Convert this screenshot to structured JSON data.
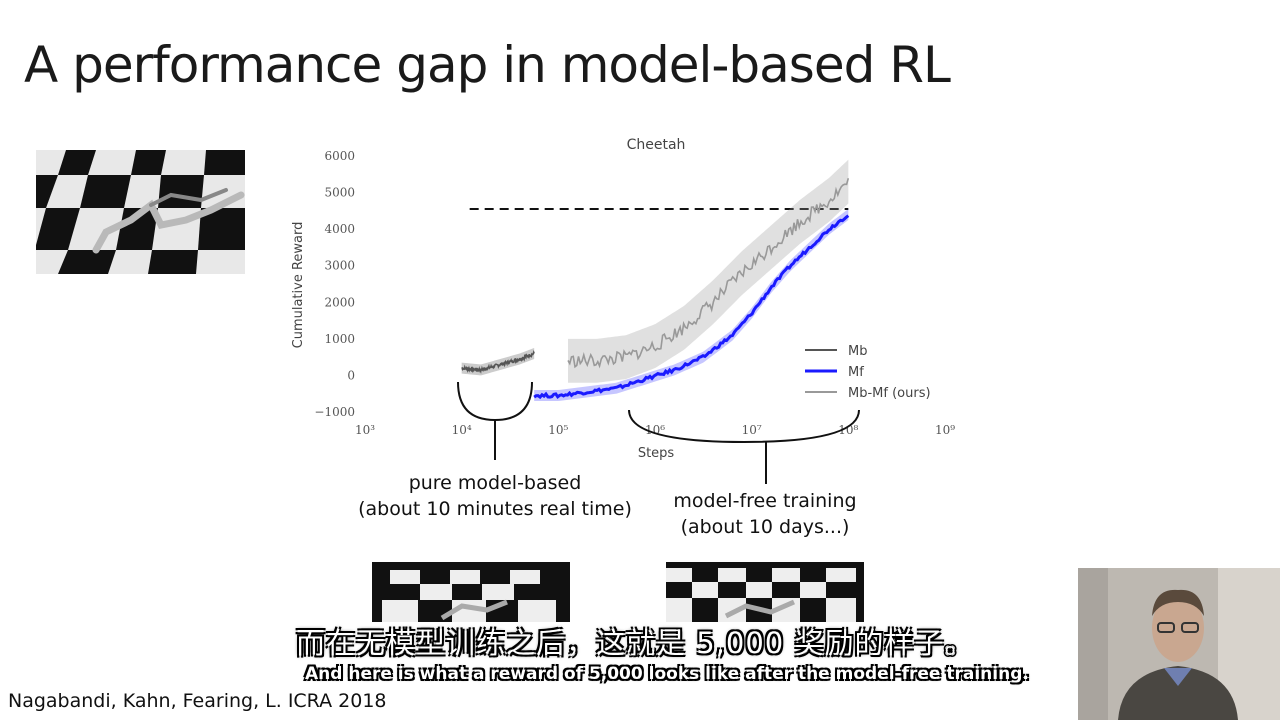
{
  "slide": {
    "title": "A performance gap in model-based RL",
    "citation": "Nagabandi, Kahn, Fearing, L. ICRA 2018"
  },
  "annotations": {
    "pure_model_based": "pure model-based",
    "pure_model_based_detail": "(about 10 minutes real time)",
    "model_free": "model-free training",
    "model_free_detail": "(about 10 days...)"
  },
  "subtitles": {
    "chinese": "而在无模型训练之后，这就是 5,000 奖励的样子。",
    "english": "And here is what a reward of 5,000 looks like after the model-free training."
  },
  "images": {
    "top_left": "cheetah-checkerboard-render",
    "bottom_left": "cheetah-model-based-render",
    "bottom_right": "cheetah-model-free-render",
    "webcam": "presenter-webcam"
  },
  "chart_data": {
    "type": "line",
    "title": "Cheetah",
    "xlabel": "Steps",
    "ylabel": "Cumulative Reward",
    "xscale": "log",
    "xlim_log10": [
      3,
      9
    ],
    "ylim": [
      -1000,
      6000
    ],
    "x_tick_labels": [
      "10³",
      "10⁴",
      "10⁵",
      "10⁶",
      "10⁷",
      "10⁸",
      "10⁹"
    ],
    "y_tick_labels": [
      "−1000",
      "0",
      "1000",
      "2000",
      "3000",
      "4000",
      "5000",
      "6000"
    ],
    "legend_position": "lower-right",
    "reference_line": {
      "y": 4550,
      "x_log10": [
        4,
        8
      ],
      "style": "dashed"
    },
    "series": [
      {
        "name": "Mb",
        "color": "#555555",
        "x_log10": [
          4.0,
          4.2,
          4.4,
          4.6,
          4.75
        ],
        "y": [
          200,
          150,
          300,
          450,
          600
        ],
        "spread": 150
      },
      {
        "name": "Mf",
        "color": "#1a1aff",
        "x_log10": [
          4.75,
          5.0,
          5.3,
          5.6,
          5.9,
          6.2,
          6.5,
          6.8,
          7.0,
          7.2,
          7.4,
          7.6,
          7.8,
          8.0
        ],
        "y": [
          -550,
          -550,
          -450,
          -350,
          -100,
          150,
          500,
          1100,
          1700,
          2400,
          3000,
          3500,
          4000,
          4400
        ],
        "spread": 150
      },
      {
        "name": "Mb-Mf (ours)",
        "color": "#999999",
        "x_log10": [
          5.1,
          5.4,
          5.7,
          6.0,
          6.3,
          6.6,
          6.9,
          7.2,
          7.5,
          7.8,
          8.0
        ],
        "y": [
          400,
          400,
          500,
          800,
          1300,
          2000,
          2800,
          3500,
          4200,
          4800,
          5300
        ],
        "spread": 600
      }
    ]
  }
}
